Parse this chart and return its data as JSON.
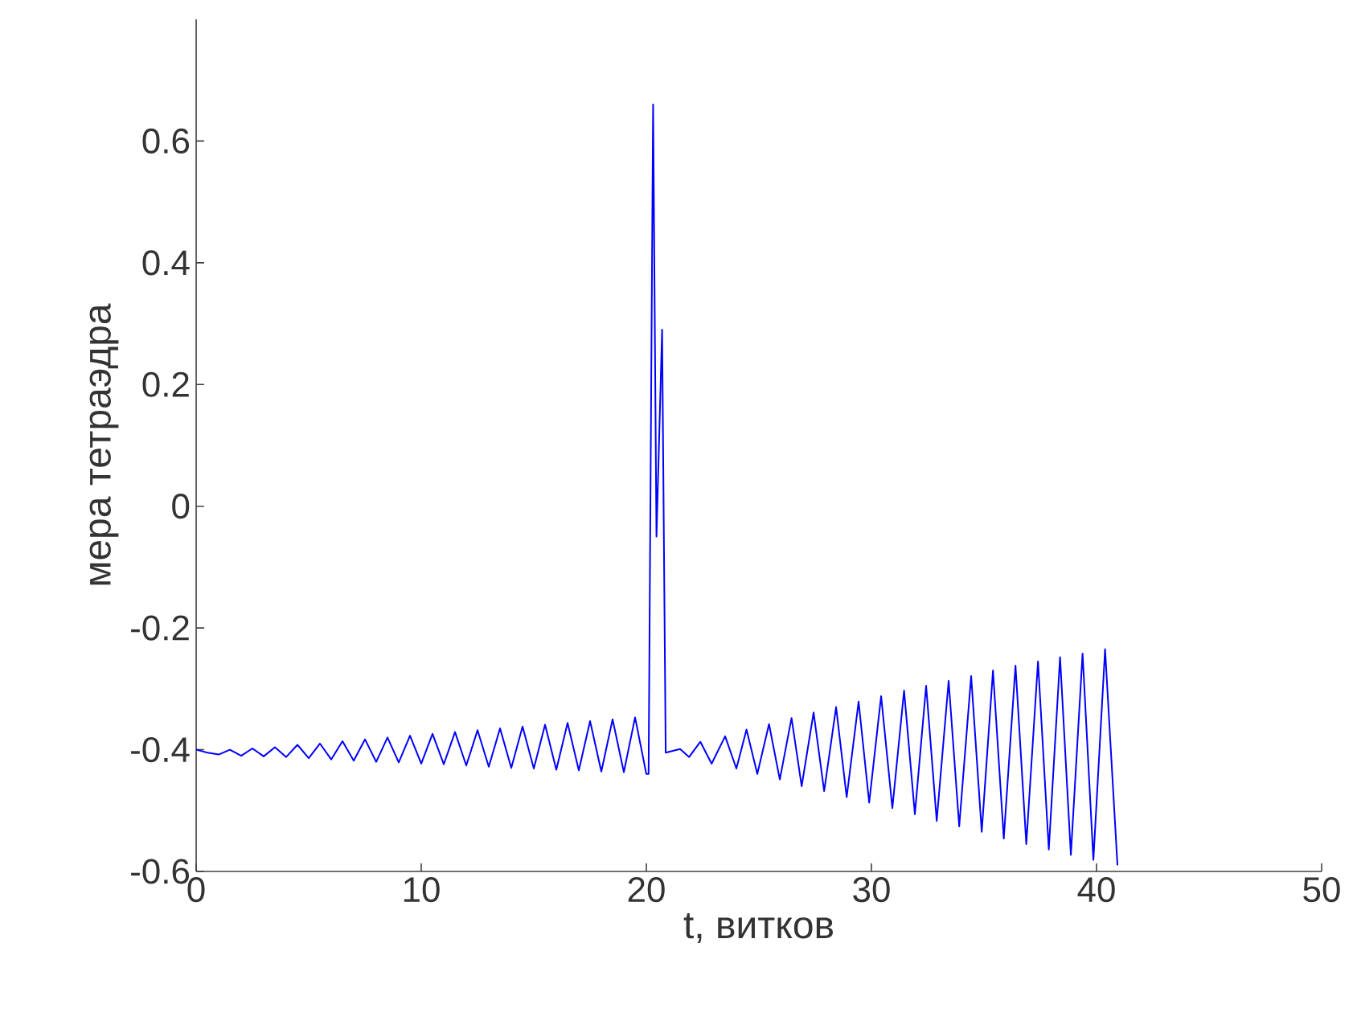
{
  "chart_data": {
    "type": "line",
    "xlabel": "t, витков",
    "ylabel": "мера тетраэдра",
    "color": "#0000ff",
    "xlim": [
      0,
      50
    ],
    "ylim": [
      -0.6,
      0.8
    ],
    "xticks": [
      0,
      10,
      20,
      30,
      40,
      50
    ],
    "yticks": [
      -0.6,
      -0.4,
      -0.2,
      0,
      0.2,
      0.4,
      0.6
    ],
    "x": [
      0,
      0.5,
      1,
      1.5,
      2,
      2.5,
      3,
      3.5,
      4,
      4.5,
      5,
      5.5,
      6,
      6.5,
      7,
      7.5,
      8,
      8.5,
      9,
      9.5,
      10,
      10.5,
      11,
      11.5,
      12,
      12.5,
      13,
      13.5,
      14,
      14.5,
      15,
      15.5,
      16,
      16.5,
      17,
      17.5,
      18,
      18.5,
      19,
      19.5,
      20,
      20.1,
      20.3,
      20.45,
      20.7,
      20.86,
      21.5,
      21.9,
      22.4,
      22.9,
      23.5,
      24.0,
      24.45,
      24.93,
      25.45,
      25.93,
      26.45,
      26.9,
      27.43,
      27.9,
      28.43,
      28.9,
      29.43,
      29.9,
      30.43,
      30.93,
      31.45,
      31.93,
      32.43,
      32.9,
      33.43,
      33.9,
      34.43,
      34.9,
      35.4,
      35.88,
      36.4,
      36.88,
      37.4,
      37.88,
      38.38,
      38.86,
      39.38,
      39.86,
      40.38,
      40.93
    ],
    "values": [
      -0.4,
      -0.405,
      -0.408,
      -0.4,
      -0.41,
      -0.398,
      -0.411,
      -0.396,
      -0.412,
      -0.392,
      -0.414,
      -0.39,
      -0.416,
      -0.386,
      -0.418,
      -0.383,
      -0.42,
      -0.38,
      -0.421,
      -0.377,
      -0.423,
      -0.374,
      -0.424,
      -0.371,
      -0.426,
      -0.368,
      -0.428,
      -0.365,
      -0.43,
      -0.362,
      -0.431,
      -0.359,
      -0.433,
      -0.356,
      -0.434,
      -0.353,
      -0.436,
      -0.35,
      -0.437,
      -0.347,
      -0.44,
      -0.44,
      0.66,
      -0.05,
      0.29,
      -0.405,
      -0.399,
      -0.412,
      -0.387,
      -0.423,
      -0.378,
      -0.431,
      -0.367,
      -0.44,
      -0.358,
      -0.449,
      -0.348,
      -0.46,
      -0.339,
      -0.468,
      -0.33,
      -0.478,
      -0.321,
      -0.487,
      -0.312,
      -0.496,
      -0.303,
      -0.506,
      -0.295,
      -0.517,
      -0.287,
      -0.526,
      -0.279,
      -0.535,
      -0.27,
      -0.546,
      -0.262,
      -0.555,
      -0.255,
      -0.564,
      -0.248,
      -0.573,
      -0.242,
      -0.581,
      -0.235,
      -0.59
    ]
  }
}
